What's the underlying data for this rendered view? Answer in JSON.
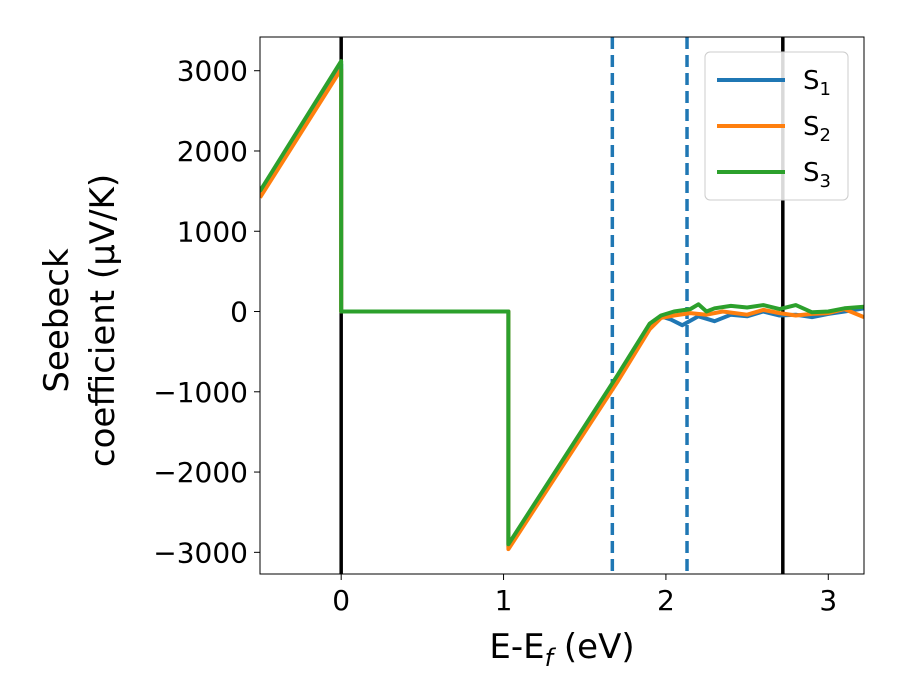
{
  "chart_data": {
    "type": "line",
    "xlabel": "E-E_f (eV)",
    "ylabel": [
      "Seebeck",
      "coefficient  (μV/K)"
    ],
    "xlim": [
      -0.5,
      3.22
    ],
    "ylim": [
      -3270,
      3420
    ],
    "xticks": [
      0,
      1,
      2,
      3
    ],
    "yticks": [
      -3000,
      -2000,
      -1000,
      0,
      1000,
      2000,
      3000
    ],
    "xtick_labels": [
      "0",
      "1",
      "2",
      "3"
    ],
    "ytick_labels": [
      "−3000",
      "−2000",
      "−1000",
      "0",
      "1000",
      "2000",
      "3000"
    ],
    "grid": false,
    "legend_position": "top-right",
    "vertical_lines": [
      {
        "x": 0.0,
        "style": "solid",
        "color": "#000000"
      },
      {
        "x": 1.67,
        "style": "dashed",
        "color": "#1f77b4"
      },
      {
        "x": 2.13,
        "style": "dashed",
        "color": "#1f77b4"
      },
      {
        "x": 2.72,
        "style": "solid",
        "color": "#000000"
      }
    ],
    "series": [
      {
        "name": "S",
        "subscript": "1",
        "color": "#1f77b4",
        "x": [
          -0.5,
          0.0,
          0.0,
          1.03,
          1.03,
          1.7,
          1.9,
          1.97,
          2.03,
          2.1,
          2.2,
          2.3,
          2.4,
          2.5,
          2.6,
          2.7,
          2.8,
          2.9,
          3.0,
          3.1,
          3.22
        ],
        "y": [
          1480,
          3080,
          0,
          0,
          -2930,
          -820,
          -180,
          -60,
          -100,
          -170,
          -60,
          -120,
          -40,
          -60,
          0,
          -50,
          -40,
          -70,
          -30,
          0,
          40
        ]
      },
      {
        "name": "S",
        "subscript": "2",
        "color": "#ff7f0e",
        "x": [
          -0.5,
          0.0,
          0.0,
          1.03,
          1.03,
          1.7,
          1.9,
          1.97,
          2.05,
          2.15,
          2.25,
          2.35,
          2.5,
          2.6,
          2.7,
          2.8,
          2.9,
          3.0,
          3.1,
          3.22
        ],
        "y": [
          1420,
          3020,
          0,
          0,
          -2960,
          -880,
          -220,
          -80,
          -50,
          -20,
          -40,
          0,
          -40,
          20,
          -20,
          -50,
          -30,
          -20,
          30,
          -70
        ]
      },
      {
        "name": "S",
        "subscript": "3",
        "color": "#2ca02c",
        "x": [
          -0.5,
          0.0,
          0.0,
          1.03,
          1.03,
          1.7,
          1.9,
          1.97,
          2.05,
          2.15,
          2.2,
          2.25,
          2.3,
          2.4,
          2.5,
          2.6,
          2.7,
          2.8,
          2.9,
          3.0,
          3.1,
          3.22
        ],
        "y": [
          1500,
          3120,
          0,
          0,
          -2900,
          -800,
          -150,
          -50,
          0,
          30,
          90,
          0,
          40,
          70,
          50,
          80,
          30,
          80,
          -10,
          0,
          40,
          60
        ]
      }
    ]
  }
}
